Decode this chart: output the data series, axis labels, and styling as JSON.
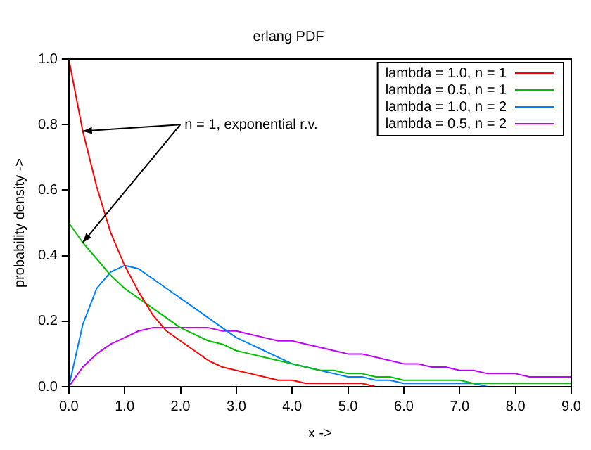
{
  "chart_data": {
    "type": "line",
    "title": "erlang PDF",
    "xlabel": "x ->",
    "ylabel": "probability density ->",
    "x": [
      0,
      0.25,
      0.5,
      0.75,
      1,
      1.25,
      1.5,
      1.75,
      2,
      2.25,
      2.5,
      2.75,
      3,
      3.25,
      3.5,
      3.75,
      4,
      4.25,
      4.5,
      4.75,
      5,
      5.25,
      5.5,
      5.75,
      6,
      6.25,
      6.5,
      6.75,
      7,
      7.25,
      7.5,
      7.75,
      8,
      8.25,
      8.5,
      8.75,
      9
    ],
    "series": [
      {
        "name": "lambda = 1.0, n = 1",
        "color": "#ff0000",
        "values": [
          1,
          0.78,
          0.61,
          0.47,
          0.37,
          0.29,
          0.22,
          0.17,
          0.14,
          0.11,
          0.08,
          0.06,
          0.05,
          0.04,
          0.03,
          0.02,
          0.02,
          0.01,
          0.01,
          0.01,
          0.01,
          0.01,
          0,
          null,
          null,
          null,
          null,
          null,
          null,
          null,
          null,
          null,
          null,
          null,
          null,
          null,
          null
        ]
      },
      {
        "name": "lambda = 0.5, n = 1",
        "color": "#00c000",
        "values": [
          0.5,
          0.44,
          0.39,
          0.34,
          0.3,
          0.27,
          0.24,
          0.21,
          0.18,
          0.16,
          0.14,
          0.13,
          0.11,
          0.1,
          0.09,
          0.08,
          0.07,
          0.06,
          0.05,
          0.05,
          0.04,
          0.04,
          0.03,
          0.03,
          0.02,
          0.02,
          0.02,
          0.02,
          0.02,
          0.01,
          0.01,
          0.01,
          0.01,
          0.01,
          0.01,
          0.01,
          0.01
        ]
      },
      {
        "name": "lambda = 1.0, n = 2",
        "color": "#0080ff",
        "values": [
          0,
          0.19,
          0.3,
          0.35,
          0.37,
          0.36,
          0.33,
          0.3,
          0.27,
          0.24,
          0.21,
          0.18,
          0.15,
          0.13,
          0.11,
          0.09,
          0.07,
          0.06,
          0.05,
          0.04,
          0.03,
          0.03,
          0.02,
          0.02,
          0.01,
          0.01,
          0.01,
          0.01,
          0.01,
          0.01,
          0,
          null,
          null,
          null,
          null,
          null,
          null
        ]
      },
      {
        "name": "lambda = 0.5, n = 2",
        "color": "#c000ff",
        "values": [
          0,
          0.06,
          0.1,
          0.13,
          0.15,
          0.17,
          0.18,
          0.18,
          0.18,
          0.18,
          0.18,
          0.17,
          0.17,
          0.16,
          0.15,
          0.14,
          0.14,
          0.13,
          0.12,
          0.11,
          0.1,
          0.1,
          0.09,
          0.08,
          0.07,
          0.07,
          0.06,
          0.06,
          0.05,
          0.05,
          0.04,
          0.04,
          0.04,
          0.03,
          0.03,
          0.03,
          0.03
        ]
      }
    ],
    "xlim": [
      0,
      9
    ],
    "xticks": [
      {
        "value": 0,
        "label": "0.0"
      },
      {
        "value": 1,
        "label": "1.0"
      },
      {
        "value": 2,
        "label": "2.0"
      },
      {
        "value": 3,
        "label": "3.0"
      },
      {
        "value": 4,
        "label": "4.0"
      },
      {
        "value": 5,
        "label": "5.0"
      },
      {
        "value": 6,
        "label": "6.0"
      },
      {
        "value": 7,
        "label": "7.0"
      },
      {
        "value": 8,
        "label": "8.0"
      },
      {
        "value": 9,
        "label": "9.0"
      }
    ],
    "ylim": [
      0,
      1
    ],
    "yticks": [
      {
        "value": 0,
        "label": "0.0"
      },
      {
        "value": 0.2,
        "label": "0.2"
      },
      {
        "value": 0.4,
        "label": "0.4"
      },
      {
        "value": 0.6,
        "label": "0.6"
      },
      {
        "value": 0.8,
        "label": "0.8"
      },
      {
        "value": 1,
        "label": "1.0"
      }
    ],
    "annotations": [
      {
        "text": "n = 1, exponential r.v.",
        "x": 0.25,
        "y": 0.78
      }
    ],
    "grid": false,
    "legend": "top right",
    "marker": "none",
    "line_style": "solid"
  }
}
